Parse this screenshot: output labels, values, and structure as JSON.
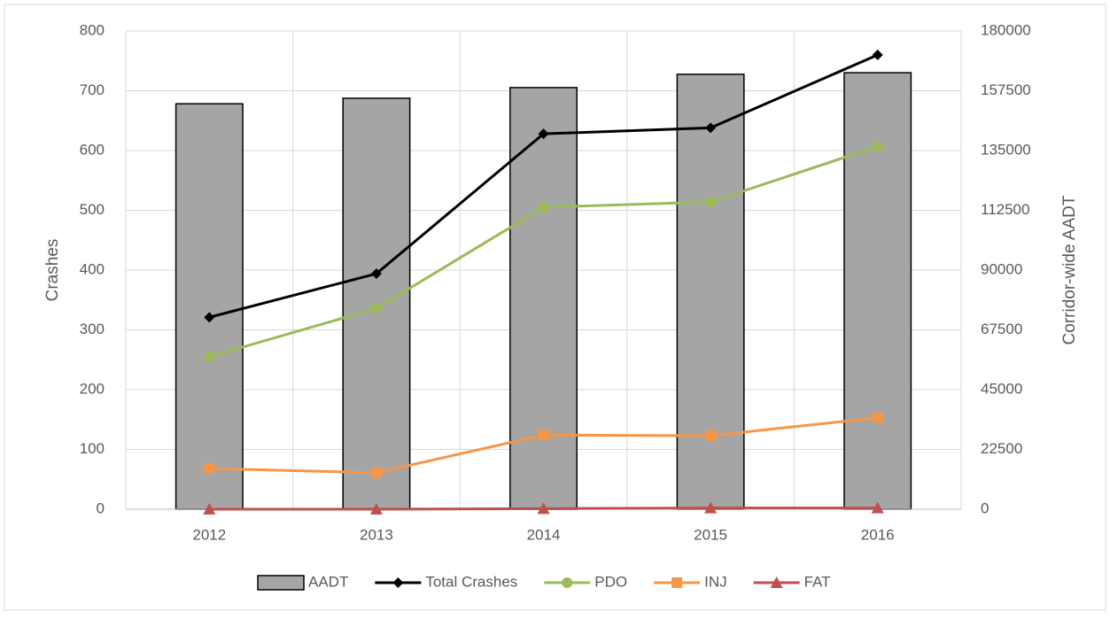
{
  "chart_data": {
    "type": "bar-line",
    "categories": [
      "2012",
      "2013",
      "2014",
      "2015",
      "2016"
    ],
    "ylabel": "Crashes",
    "y2label": "Corridor-wide AADT",
    "ylim": [
      0,
      800
    ],
    "yticks": [
      0,
      100,
      200,
      300,
      400,
      500,
      600,
      700,
      800
    ],
    "y2lim": [
      0,
      180000
    ],
    "y2ticks": [
      0,
      22500,
      45000,
      67500,
      90000,
      112500,
      135000,
      157500,
      180000
    ],
    "grid": true,
    "legend": "bottom",
    "series": [
      {
        "name": "AADT",
        "type": "bar",
        "axis": "y2",
        "color": "#a5a5a5",
        "values": [
          152600,
          154700,
          158700,
          163700,
          164300
        ]
      },
      {
        "name": "Total Crashes",
        "type": "line",
        "marker": "diamond",
        "color": "#000000",
        "values": [
          321,
          394,
          628,
          638,
          760
        ]
      },
      {
        "name": "PDO",
        "type": "line",
        "marker": "circle",
        "color": "#9bbb59",
        "values": [
          255,
          336,
          505,
          514,
          607
        ]
      },
      {
        "name": "INJ",
        "type": "line",
        "marker": "square",
        "color": "#f79646",
        "values": [
          68,
          61,
          124,
          123,
          153
        ]
      },
      {
        "name": "FAT",
        "type": "line",
        "marker": "triangle",
        "color": "#c0504d",
        "values": [
          0,
          0,
          1,
          2,
          2
        ]
      }
    ]
  }
}
